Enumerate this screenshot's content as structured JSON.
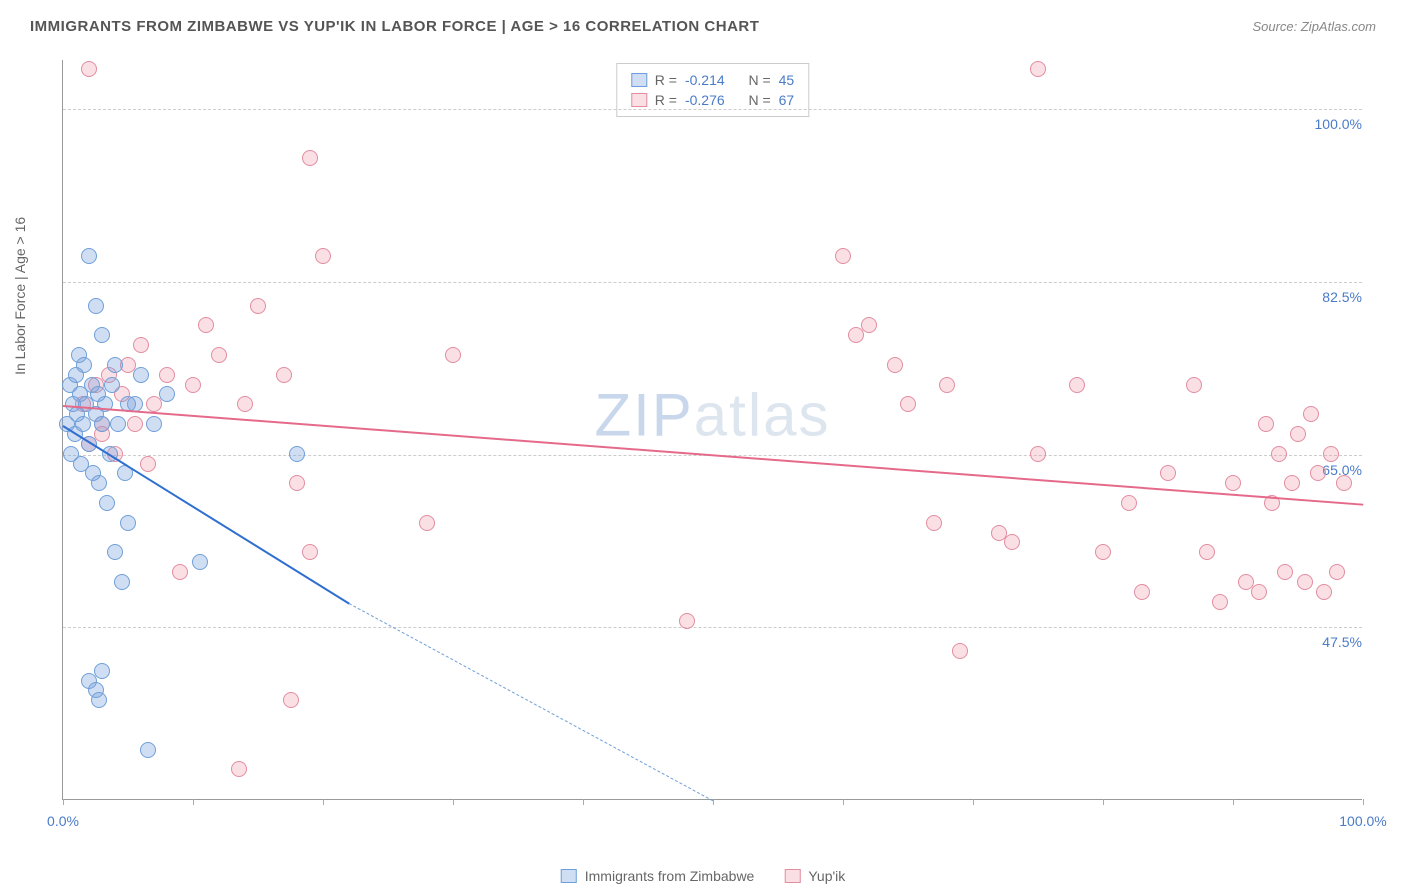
{
  "title": "IMMIGRANTS FROM ZIMBABWE VS YUP'IK IN LABOR FORCE | AGE > 16 CORRELATION CHART",
  "source": "Source: ZipAtlas.com",
  "yaxis_label": "In Labor Force | Age > 16",
  "watermark_a": "ZIP",
  "watermark_b": "atlas",
  "chart": {
    "type": "scatter-correlation",
    "background": "#ffffff",
    "grid_color": "#cccccc",
    "axis_color": "#999999",
    "tick_label_color": "#4a7bc8",
    "xlim": [
      0,
      100
    ],
    "ylim": [
      30,
      105
    ],
    "yticks": [
      47.5,
      65.0,
      82.5,
      100.0
    ],
    "ytick_labels": [
      "47.5%",
      "65.0%",
      "82.5%",
      "100.0%"
    ],
    "xticks": [
      0,
      10,
      20,
      30,
      40,
      50,
      60,
      70,
      80,
      90,
      100
    ],
    "xtick_labels_shown": {
      "0": "0.0%",
      "100": "100.0%"
    },
    "marker_radius": 8,
    "marker_opacity": 0.45
  },
  "series": {
    "A": {
      "label": "Immigrants from Zimbabwe",
      "fill": "rgba(120,160,220,0.35)",
      "stroke": "#6f9fd8",
      "line_color": "#2f6fcf",
      "R": "-0.214",
      "N": "45",
      "trend": {
        "x0": 0,
        "y0": 68,
        "x1": 22,
        "y1": 50,
        "dash_to_x": 50,
        "dash_to_y": 30
      },
      "points": [
        [
          0.3,
          68
        ],
        [
          0.5,
          72
        ],
        [
          0.6,
          65
        ],
        [
          0.8,
          70
        ],
        [
          0.9,
          67
        ],
        [
          1.0,
          73
        ],
        [
          1.1,
          69
        ],
        [
          1.2,
          75
        ],
        [
          1.3,
          71
        ],
        [
          1.4,
          64
        ],
        [
          1.5,
          68
        ],
        [
          1.6,
          74
        ],
        [
          1.8,
          70
        ],
        [
          2.0,
          66
        ],
        [
          2.0,
          85
        ],
        [
          2.2,
          72
        ],
        [
          2.3,
          63
        ],
        [
          2.5,
          69
        ],
        [
          2.5,
          80
        ],
        [
          2.7,
          71
        ],
        [
          2.8,
          62
        ],
        [
          3.0,
          68
        ],
        [
          3.0,
          77
        ],
        [
          3.2,
          70
        ],
        [
          3.4,
          60
        ],
        [
          3.6,
          65
        ],
        [
          3.8,
          72
        ],
        [
          4.0,
          55
        ],
        [
          4.2,
          68
        ],
        [
          4.5,
          52
        ],
        [
          4.8,
          63
        ],
        [
          5.0,
          58
        ],
        [
          5.5,
          70
        ],
        [
          2.0,
          42
        ],
        [
          2.5,
          41
        ],
        [
          3.0,
          43
        ],
        [
          2.8,
          40
        ],
        [
          10.5,
          54
        ],
        [
          6.0,
          73
        ],
        [
          7.0,
          68
        ],
        [
          8.0,
          71
        ],
        [
          18.0,
          65
        ],
        [
          6.5,
          35
        ],
        [
          5.0,
          70
        ],
        [
          4.0,
          74
        ]
      ]
    },
    "B": {
      "label": "Yup'ik",
      "fill": "rgba(240,150,170,0.30)",
      "stroke": "#e28da0",
      "line_color": "#e56a8a",
      "R": "-0.276",
      "N": "67",
      "trend": {
        "x0": 0,
        "y0": 70,
        "x1": 100,
        "y1": 60
      },
      "points": [
        [
          1.5,
          70
        ],
        [
          2.0,
          66
        ],
        [
          2.5,
          72
        ],
        [
          3.0,
          68
        ],
        [
          3.5,
          73
        ],
        [
          4.0,
          65
        ],
        [
          4.5,
          71
        ],
        [
          5.0,
          74
        ],
        [
          5.5,
          68
        ],
        [
          6.0,
          76
        ],
        [
          6.5,
          64
        ],
        [
          7.0,
          70
        ],
        [
          8.0,
          73
        ],
        [
          9.0,
          53
        ],
        [
          10.0,
          72
        ],
        [
          11.0,
          78
        ],
        [
          12.0,
          75
        ],
        [
          13.5,
          33
        ],
        [
          14.0,
          70
        ],
        [
          15.0,
          80
        ],
        [
          17.0,
          73
        ],
        [
          18.0,
          62
        ],
        [
          19.0,
          95
        ],
        [
          20.0,
          85
        ],
        [
          17.5,
          40
        ],
        [
          19.0,
          55
        ],
        [
          30.0,
          75
        ],
        [
          28.0,
          58
        ],
        [
          48.0,
          48
        ],
        [
          60.0,
          85
        ],
        [
          61.0,
          77
        ],
        [
          62.0,
          78
        ],
        [
          64.0,
          74
        ],
        [
          65.0,
          70
        ],
        [
          67.0,
          58
        ],
        [
          68.0,
          72
        ],
        [
          69.0,
          45
        ],
        [
          72.0,
          57
        ],
        [
          73.0,
          56
        ],
        [
          75.0,
          65
        ],
        [
          78.0,
          72
        ],
        [
          80.0,
          55
        ],
        [
          82.0,
          60
        ],
        [
          83.0,
          51
        ],
        [
          85.0,
          63
        ],
        [
          87.0,
          72
        ],
        [
          88.0,
          55
        ],
        [
          89.0,
          50
        ],
        [
          90.0,
          62
        ],
        [
          91.0,
          52
        ],
        [
          92.0,
          51
        ],
        [
          92.5,
          68
        ],
        [
          93.0,
          60
        ],
        [
          93.5,
          65
        ],
        [
          94.0,
          53
        ],
        [
          94.5,
          62
        ],
        [
          95.0,
          67
        ],
        [
          95.5,
          52
        ],
        [
          96.0,
          69
        ],
        [
          96.5,
          63
        ],
        [
          97.0,
          51
        ],
        [
          97.5,
          65
        ],
        [
          98.0,
          53
        ],
        [
          98.5,
          62
        ],
        [
          75.0,
          104
        ],
        [
          2.0,
          104
        ],
        [
          3.0,
          67
        ]
      ]
    }
  },
  "legend_top": {
    "r_prefix": "R = ",
    "n_prefix": "N = "
  },
  "legend_bottom": {}
}
